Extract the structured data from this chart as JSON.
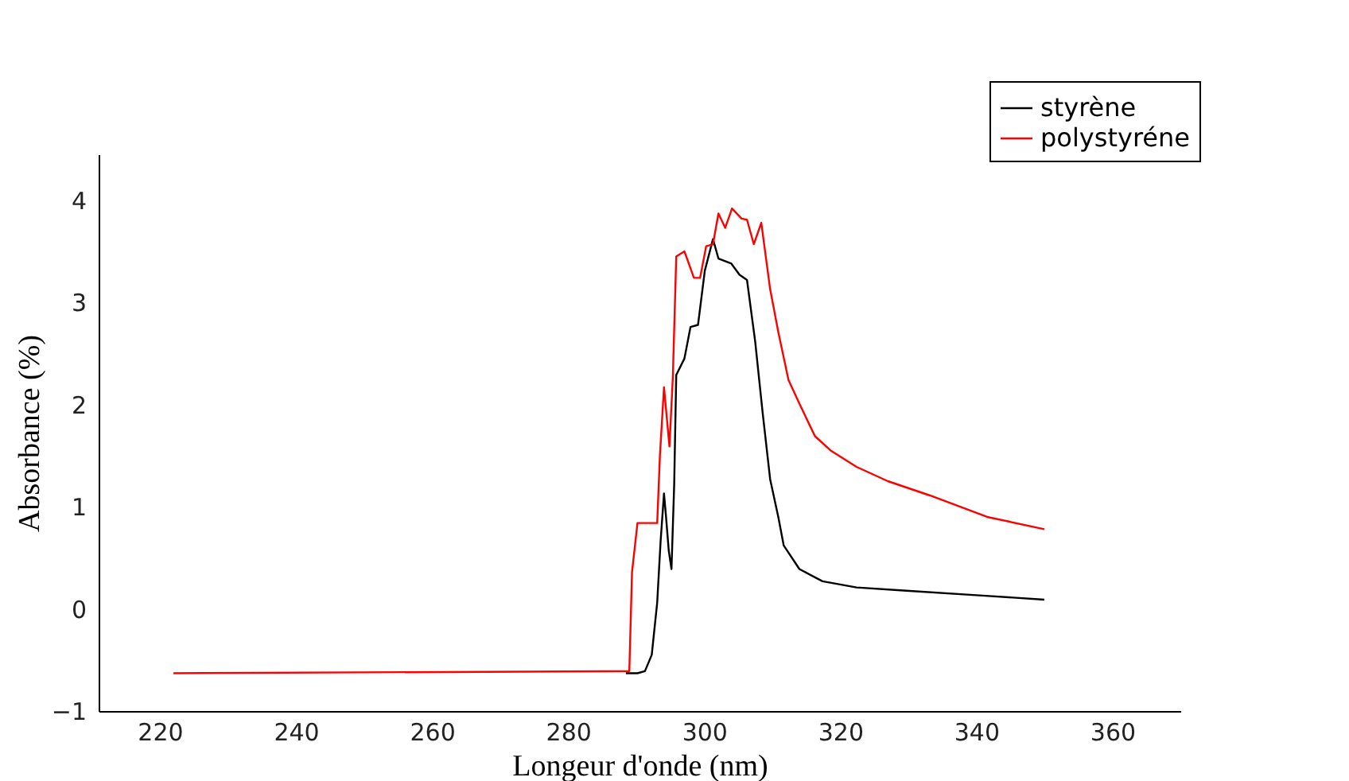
{
  "chart_data": {
    "type": "line",
    "xlabel": "Longeur d'onde (nm)",
    "ylabel": "Absorbance (%)",
    "xlim": [
      211,
      370
    ],
    "xticks": [
      220,
      240,
      260,
      280,
      300,
      320,
      340,
      360
    ],
    "ylim": [
      -1,
      4.45
    ],
    "yticks": [
      -1,
      0,
      1,
      2,
      3,
      4
    ],
    "grid": false,
    "legend": "top right",
    "line_style": "solid",
    "series": [
      {
        "name": "styrène",
        "color": "#000000",
        "x": [
          288.5,
          290.2,
          291.3,
          292.3,
          293.1,
          293.6,
          294.1,
          294.4,
          294.8,
          295.2,
          295.6,
          295.9,
          297.1,
          298.0,
          299.1,
          300.1,
          301.3,
          302.1,
          304.0,
          305.2,
          306.3,
          307.5,
          308.6,
          309.7,
          310.9,
          311.7,
          314.0,
          317.4,
          322.4,
          329.3,
          340.9,
          350
        ],
        "values": [
          -0.63,
          -0.63,
          -0.61,
          -0.45,
          0.06,
          0.66,
          1.13,
          0.9,
          0.57,
          0.39,
          1.22,
          2.29,
          2.45,
          2.76,
          2.78,
          3.31,
          3.62,
          3.43,
          3.38,
          3.27,
          3.22,
          2.62,
          1.92,
          1.27,
          0.9,
          0.62,
          0.39,
          0.27,
          0.21,
          0.18,
          0.13,
          0.09
        ]
      },
      {
        "name": "polystyréne",
        "color": "#ff0000",
        "x": [
          222,
          289.0,
          289.4,
          290.2,
          293.1,
          293.5,
          294.1,
          294.9,
          295.4,
          295.9,
          297.1,
          298.5,
          299.4,
          300.3,
          301.3,
          302.1,
          303.1,
          304.1,
          305.5,
          306.3,
          307.3,
          308.4,
          309.7,
          310.9,
          312.4,
          314.0,
          315.5,
          316.3,
          318.6,
          322.4,
          327.0,
          333.2,
          341.6,
          350
        ],
        "values": [
          -0.63,
          -0.61,
          0.36,
          0.84,
          0.84,
          1.5,
          2.17,
          1.59,
          2.27,
          3.45,
          3.5,
          3.24,
          3.24,
          3.55,
          3.57,
          3.87,
          3.73,
          3.92,
          3.82,
          3.81,
          3.57,
          3.78,
          3.13,
          2.71,
          2.24,
          2.01,
          1.8,
          1.69,
          1.55,
          1.39,
          1.25,
          1.11,
          0.9,
          0.78
        ]
      }
    ]
  }
}
